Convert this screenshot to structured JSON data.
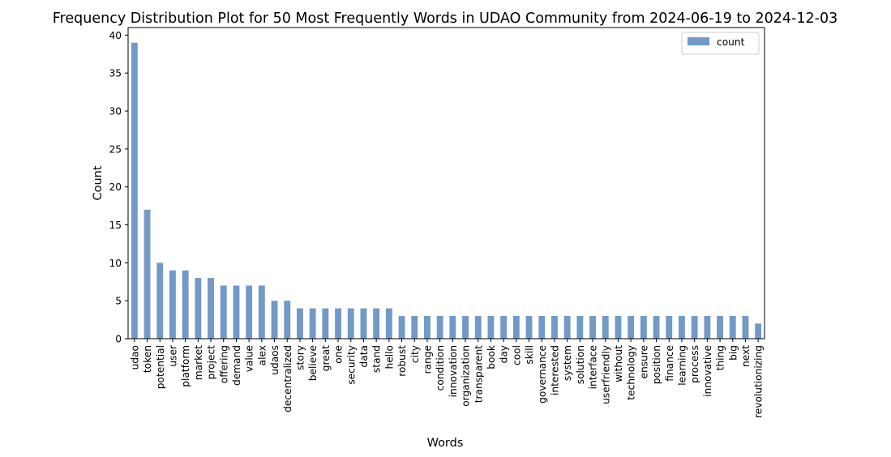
{
  "chart_data": {
    "type": "bar",
    "title": "Frequency Distribution Plot for 50 Most Frequently Words in UDAO Community from 2024-06-19 to 2024-12-03",
    "xlabel": "Words",
    "ylabel": "Count",
    "ylim": [
      0,
      41
    ],
    "yticks": [
      0,
      5,
      10,
      15,
      20,
      25,
      30,
      35,
      40
    ],
    "grid": false,
    "legend_position": "top-right",
    "bar_color": "#7399c6",
    "categories": [
      "udao",
      "token",
      "potential",
      "user",
      "platform",
      "market",
      "project",
      "offering",
      "demand",
      "value",
      "alex",
      "udaos",
      "decentralized",
      "story",
      "believe",
      "great",
      "one",
      "security",
      "data",
      "stand",
      "hello",
      "robust",
      "city",
      "range",
      "condition",
      "innovation",
      "organization",
      "transparent",
      "book",
      "day",
      "cool",
      "skill",
      "governance",
      "interested",
      "system",
      "solution",
      "interface",
      "userfriendly",
      "without",
      "technology",
      "ensure",
      "position",
      "finance",
      "learning",
      "process",
      "innovative",
      "thing",
      "big",
      "next",
      "revolutionizing"
    ],
    "series": [
      {
        "name": "count",
        "values": [
          39,
          17,
          10,
          9,
          9,
          8,
          8,
          7,
          7,
          7,
          7,
          5,
          5,
          4,
          4,
          4,
          4,
          4,
          4,
          4,
          4,
          3,
          3,
          3,
          3,
          3,
          3,
          3,
          3,
          3,
          3,
          3,
          3,
          3,
          3,
          3,
          3,
          3,
          3,
          3,
          3,
          3,
          3,
          3,
          3,
          3,
          3,
          3,
          3,
          2
        ]
      }
    ]
  }
}
